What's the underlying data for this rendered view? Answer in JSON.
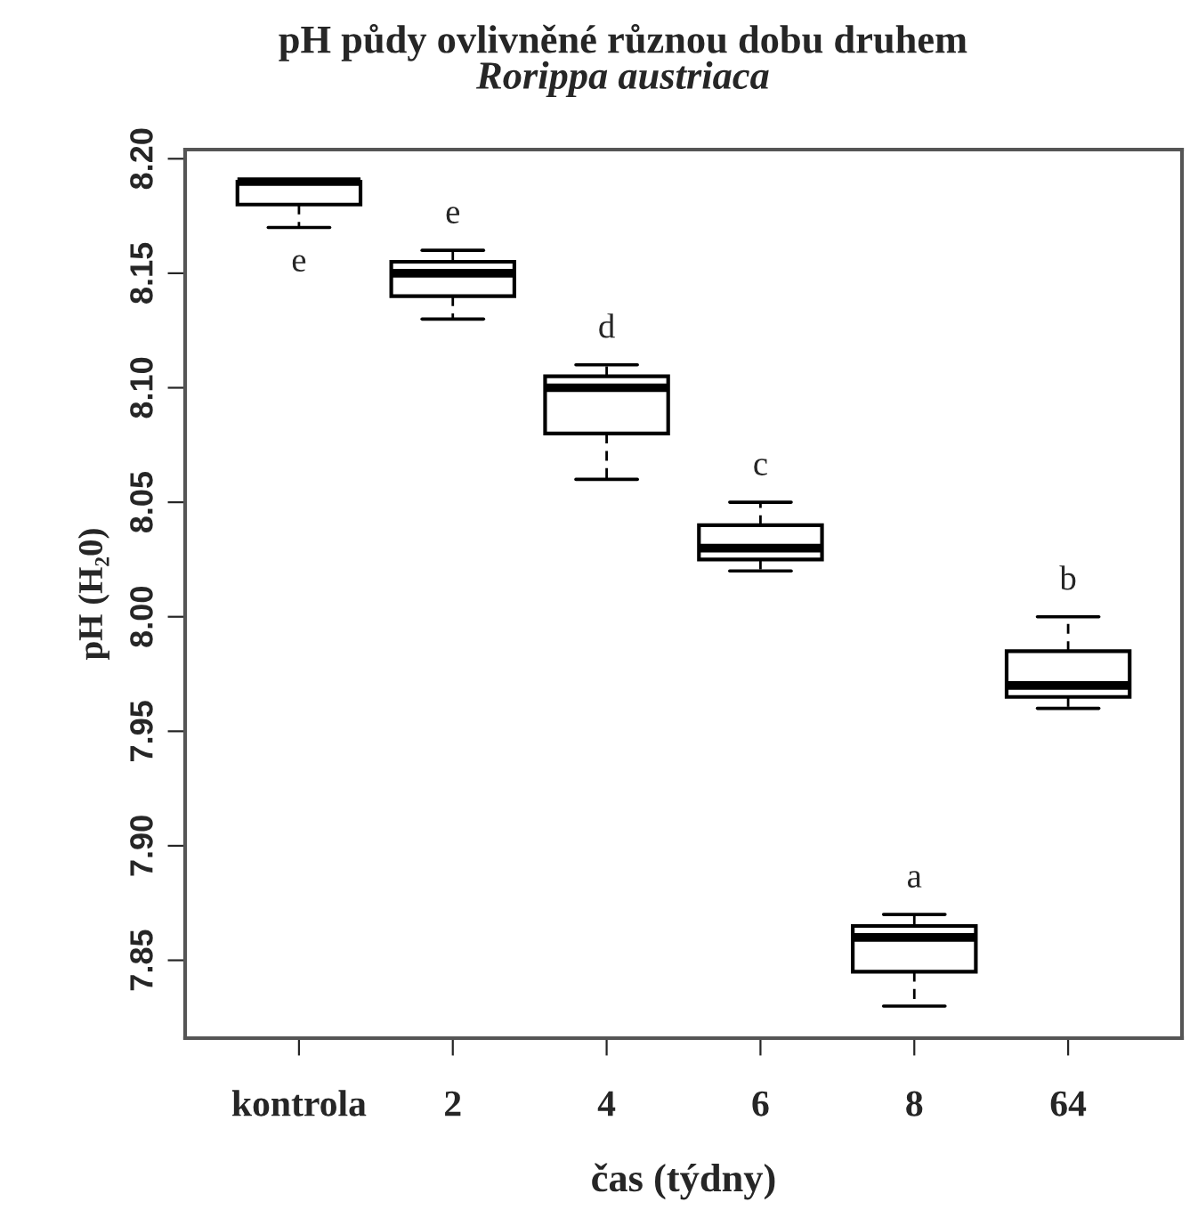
{
  "chart_data": {
    "type": "box",
    "title": "pH půdy ovlivněné různou dobu druhem",
    "subtitle": "Rorippa austriaca",
    "xlabel": "čas (týdny)",
    "ylabel": "pH (H₂0)",
    "categories": [
      "kontrola",
      "2",
      "4",
      "6",
      "8",
      "64"
    ],
    "boxes": [
      {
        "low": 8.17,
        "q1": 8.18,
        "median": 8.19,
        "q3": 8.19,
        "high": 8.19
      },
      {
        "low": 8.13,
        "q1": 8.14,
        "median": 8.15,
        "q3": 8.155,
        "high": 8.16
      },
      {
        "low": 8.06,
        "q1": 8.08,
        "median": 8.1,
        "q3": 8.105,
        "high": 8.11
      },
      {
        "low": 8.02,
        "q1": 8.025,
        "median": 8.03,
        "q3": 8.04,
        "high": 8.05
      },
      {
        "low": 7.83,
        "q1": 7.845,
        "median": 7.86,
        "q3": 7.865,
        "high": 7.87
      },
      {
        "low": 7.96,
        "q1": 7.965,
        "median": 7.97,
        "q3": 7.985,
        "high": 8.0
      }
    ],
    "ylim": [
      7.816,
      8.204
    ],
    "yticks": [
      7.85,
      {
        "value": 7.9,
        "label": "7.90"
      },
      7.95,
      {
        "value": 8.0,
        "label": "8.00"
      },
      8.05,
      {
        "value": 8.1,
        "label": "8.10"
      },
      8.15,
      {
        "value": 8.2,
        "label": "8.20"
      }
    ],
    "annotations": [
      "e",
      "e",
      "d",
      "c",
      "a",
      "b"
    ],
    "grid": false
  }
}
